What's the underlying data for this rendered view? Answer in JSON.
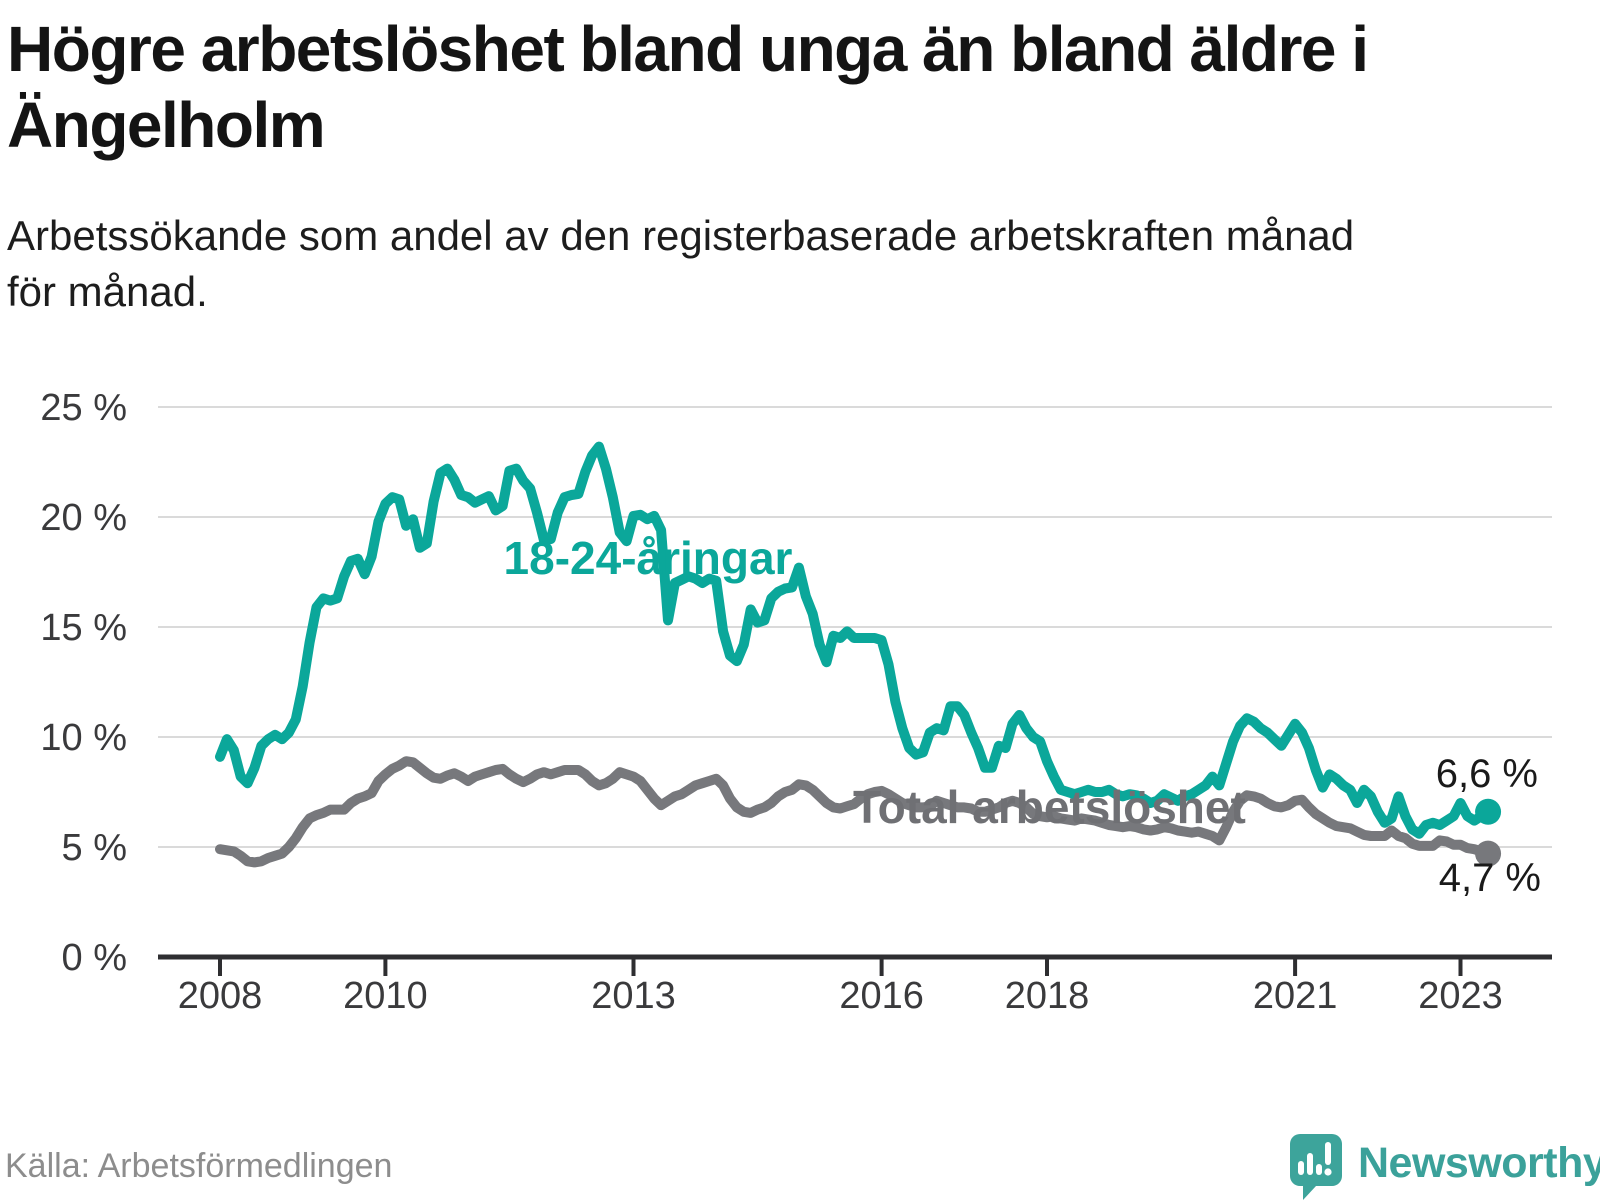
{
  "header": {
    "title": "Högre arbetslöshet bland unga än bland äldre i\nÄngelholm",
    "subtitle": "Arbetssökande som andel av den registerbaserade arbetskraften månad\nför månad."
  },
  "footer": {
    "source": "Källa: Arbetsförmedlingen",
    "brand": "Newsworthy"
  },
  "colors": {
    "young_line": "#0ba79a",
    "total_line": "#77787c",
    "total_label": "#6f7074",
    "grid": "#dadada",
    "axis": "#2e2e31",
    "tick_text": "#3a3a3c",
    "end_label_text": "#1a1a1a",
    "brand_teal": "#3ba19a"
  },
  "chart_data": {
    "type": "line",
    "title": "Högre arbetslöshet bland unga än bland äldre i Ängelholm",
    "subtitle": "Arbetssökande som andel av den registerbaserade arbetskraften månad för månad.",
    "unit": "%",
    "frequency": "monthly",
    "x_start": "2008-01",
    "x_end": "2023-05",
    "x_ticks": [
      2008,
      2010,
      2013,
      2016,
      2018,
      2021,
      2023
    ],
    "y_ticks": [
      0,
      5,
      10,
      15,
      20,
      25
    ],
    "ylim": [
      0,
      25
    ],
    "grid": "horizontal",
    "legend_position": "inline-labels",
    "series": [
      {
        "name": "18-24-åringar",
        "color": "#0ba79a",
        "end_label": "6,6 %",
        "end_value": 6.6,
        "values": [
          9.1,
          9.9,
          9.4,
          8.2,
          7.9,
          8.6,
          9.6,
          9.9,
          10.1,
          9.9,
          10.2,
          10.8,
          12.3,
          14.3,
          15.9,
          16.3,
          16.2,
          16.3,
          17.3,
          18.0,
          18.1,
          17.4,
          18.2,
          19.8,
          20.6,
          20.9,
          20.8,
          19.6,
          19.9,
          18.6,
          18.8,
          20.7,
          22.0,
          22.2,
          21.7,
          21.0,
          20.9,
          20.65,
          20.8,
          20.95,
          20.3,
          20.5,
          22.1,
          22.2,
          21.65,
          21.3,
          20.2,
          18.95,
          19.0,
          20.2,
          20.9,
          21.0,
          21.05,
          22.05,
          22.8,
          23.2,
          22.2,
          20.9,
          19.3,
          18.9,
          20.05,
          20.1,
          19.9,
          20.05,
          19.4,
          15.3,
          17.0,
          17.15,
          17.3,
          17.2,
          17.0,
          17.2,
          17.1,
          14.8,
          13.7,
          13.45,
          14.2,
          15.8,
          15.2,
          15.3,
          16.3,
          16.6,
          16.75,
          16.8,
          17.7,
          16.4,
          15.6,
          14.2,
          13.4,
          14.6,
          14.5,
          14.8,
          14.5,
          14.5,
          14.5,
          14.5,
          14.4,
          13.3,
          11.6,
          10.4,
          9.5,
          9.2,
          9.3,
          10.2,
          10.4,
          10.3,
          11.4,
          11.4,
          11.0,
          10.2,
          9.5,
          8.6,
          8.6,
          9.6,
          9.5,
          10.6,
          11.0,
          10.4,
          10.0,
          9.8,
          8.9,
          8.2,
          7.6,
          7.5,
          7.4,
          7.5,
          7.6,
          7.5,
          7.5,
          7.6,
          7.4,
          7.3,
          7.4,
          7.35,
          7.2,
          7.0,
          7.1,
          7.4,
          7.25,
          7.1,
          7.3,
          7.4,
          7.6,
          7.8,
          8.2,
          7.8,
          8.8,
          9.8,
          10.5,
          10.85,
          10.7,
          10.4,
          10.2,
          9.9,
          9.6,
          10.1,
          10.6,
          10.2,
          9.5,
          8.5,
          7.7,
          8.3,
          8.1,
          7.8,
          7.6,
          7.0,
          7.6,
          7.3,
          6.6,
          6.1,
          6.3,
          7.3,
          6.4,
          5.8,
          5.6,
          6.0,
          6.1,
          6.0,
          6.2,
          6.4,
          7.0,
          6.4,
          6.2,
          6.4,
          6.6
        ]
      },
      {
        "name": "Total arbetslöshet",
        "color": "#77787c",
        "end_label": "4,7 %",
        "end_value": 4.7,
        "values": [
          4.9,
          4.85,
          4.8,
          4.6,
          4.35,
          4.3,
          4.35,
          4.5,
          4.6,
          4.7,
          5.0,
          5.4,
          5.9,
          6.3,
          6.45,
          6.55,
          6.7,
          6.7,
          6.7,
          7.0,
          7.2,
          7.3,
          7.45,
          8.0,
          8.3,
          8.55,
          8.7,
          8.9,
          8.85,
          8.6,
          8.35,
          8.15,
          8.1,
          8.25,
          8.35,
          8.2,
          8.0,
          8.2,
          8.3,
          8.4,
          8.5,
          8.55,
          8.3,
          8.1,
          7.95,
          8.1,
          8.3,
          8.4,
          8.3,
          8.4,
          8.5,
          8.5,
          8.5,
          8.3,
          8.0,
          7.8,
          7.9,
          8.1,
          8.4,
          8.3,
          8.2,
          8.0,
          7.6,
          7.2,
          6.9,
          7.1,
          7.3,
          7.4,
          7.6,
          7.8,
          7.9,
          8.0,
          8.1,
          7.8,
          7.2,
          6.8,
          6.6,
          6.55,
          6.7,
          6.8,
          7.0,
          7.3,
          7.5,
          7.6,
          7.85,
          7.8,
          7.6,
          7.3,
          7.0,
          6.8,
          6.75,
          6.85,
          6.95,
          7.2,
          7.4,
          7.5,
          7.55,
          7.4,
          7.2,
          7.0,
          6.9,
          6.8,
          6.8,
          6.85,
          7.1,
          7.0,
          6.9,
          6.8,
          6.8,
          6.75,
          6.6,
          6.6,
          6.7,
          6.8,
          7.0,
          7.1,
          7.0,
          6.8,
          6.5,
          6.4,
          6.35,
          6.4,
          6.3,
          6.25,
          6.2,
          6.3,
          6.25,
          6.2,
          6.1,
          6.0,
          5.95,
          5.9,
          5.95,
          5.9,
          5.8,
          5.75,
          5.8,
          5.9,
          5.85,
          5.75,
          5.7,
          5.65,
          5.7,
          5.6,
          5.5,
          5.3,
          5.9,
          6.6,
          7.1,
          7.35,
          7.3,
          7.2,
          7.0,
          6.85,
          6.8,
          6.9,
          7.1,
          7.15,
          6.8,
          6.5,
          6.3,
          6.1,
          5.95,
          5.9,
          5.85,
          5.7,
          5.55,
          5.5,
          5.5,
          5.5,
          5.75,
          5.5,
          5.4,
          5.15,
          5.05,
          5.05,
          5.05,
          5.3,
          5.25,
          5.1,
          5.1,
          4.95,
          4.9,
          4.8,
          4.7
        ]
      }
    ]
  }
}
